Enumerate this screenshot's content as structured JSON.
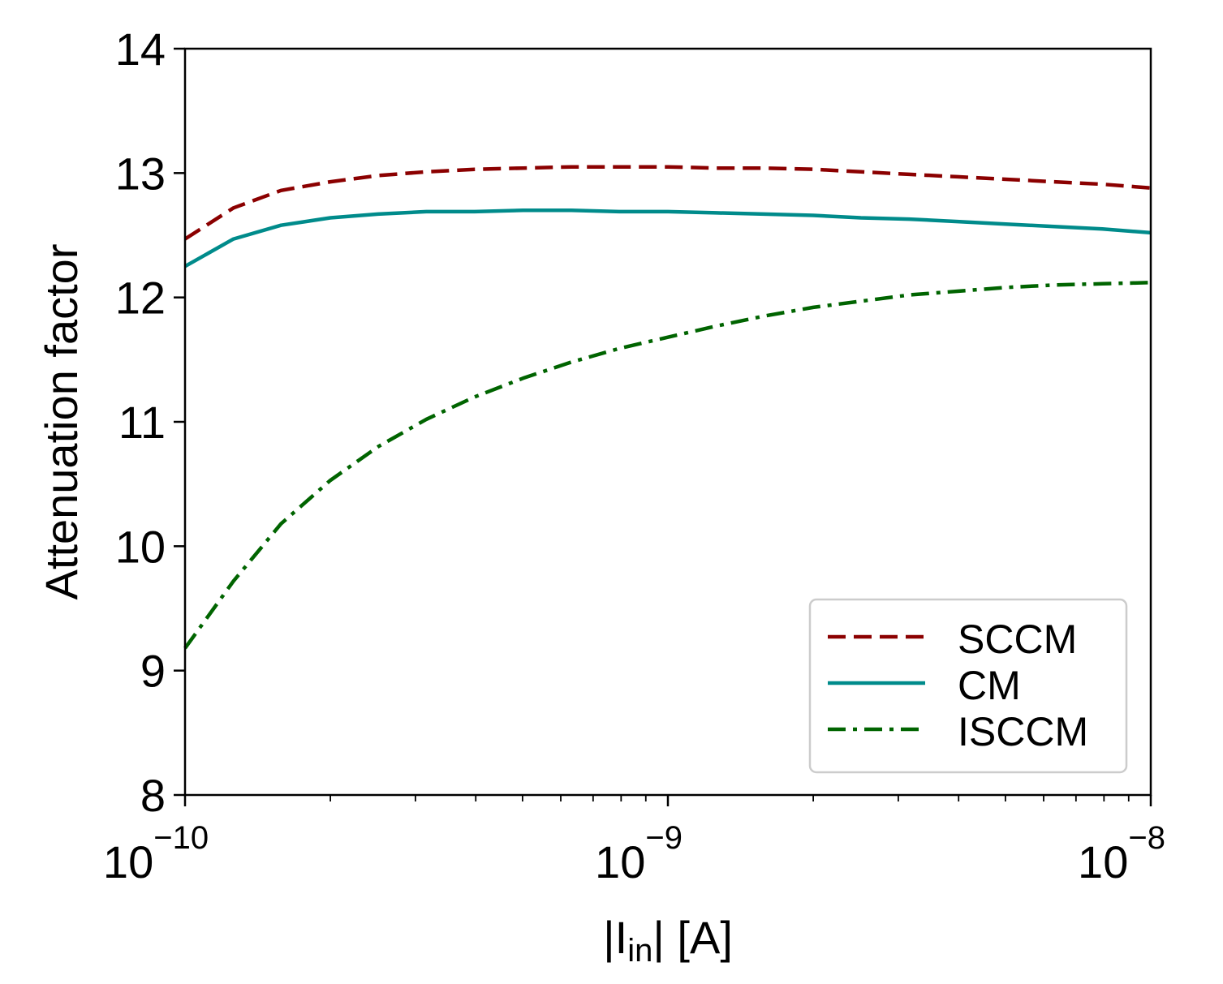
{
  "chart_data": {
    "type": "line",
    "title": "",
    "xlabel": "|I_in| [A]",
    "xlabel_parts": {
      "pre": "|I",
      "sub": "in",
      "post": "| [A]"
    },
    "ylabel": "Attenuation factor",
    "xscale": "log",
    "xlim": [
      1e-10,
      1e-08
    ],
    "ylim": [
      8,
      14
    ],
    "x_ticks": [
      {
        "value": 1e-10,
        "base": "10",
        "exp": "−10"
      },
      {
        "value": 1e-09,
        "base": "10",
        "exp": "−9"
      },
      {
        "value": 1e-08,
        "base": "10",
        "exp": "−8"
      }
    ],
    "y_ticks": [
      8,
      9,
      10,
      11,
      12,
      13,
      14
    ],
    "grid": false,
    "legend_position": "lower-right",
    "x": [
      1e-10,
      1.26e-10,
      1.58e-10,
      2e-10,
      2.51e-10,
      3.16e-10,
      3.98e-10,
      5.01e-10,
      6.31e-10,
      7.94e-10,
      1e-09,
      1.26e-09,
      1.58e-09,
      2e-09,
      2.51e-09,
      3.16e-09,
      3.98e-09,
      5.01e-09,
      6.31e-09,
      7.94e-09,
      1e-08
    ],
    "series": [
      {
        "name": "SCCM",
        "color": "#8b0000",
        "dash": "dashed",
        "values": [
          12.47,
          12.72,
          12.86,
          12.93,
          12.98,
          13.01,
          13.03,
          13.04,
          13.05,
          13.05,
          13.05,
          13.04,
          13.04,
          13.03,
          13.01,
          12.99,
          12.97,
          12.95,
          12.93,
          12.91,
          12.88
        ]
      },
      {
        "name": "CM",
        "color": "#008b8b",
        "dash": "solid",
        "values": [
          12.25,
          12.47,
          12.58,
          12.64,
          12.67,
          12.69,
          12.69,
          12.7,
          12.7,
          12.69,
          12.69,
          12.68,
          12.67,
          12.66,
          12.64,
          12.63,
          12.61,
          12.59,
          12.57,
          12.55,
          12.52
        ]
      },
      {
        "name": "ISCCM",
        "color": "#006400",
        "dash": "dashdot",
        "values": [
          9.18,
          9.72,
          10.18,
          10.53,
          10.8,
          11.02,
          11.2,
          11.35,
          11.48,
          11.59,
          11.68,
          11.77,
          11.85,
          11.92,
          11.97,
          12.02,
          12.05,
          12.08,
          12.1,
          12.11,
          12.12
        ]
      }
    ]
  }
}
